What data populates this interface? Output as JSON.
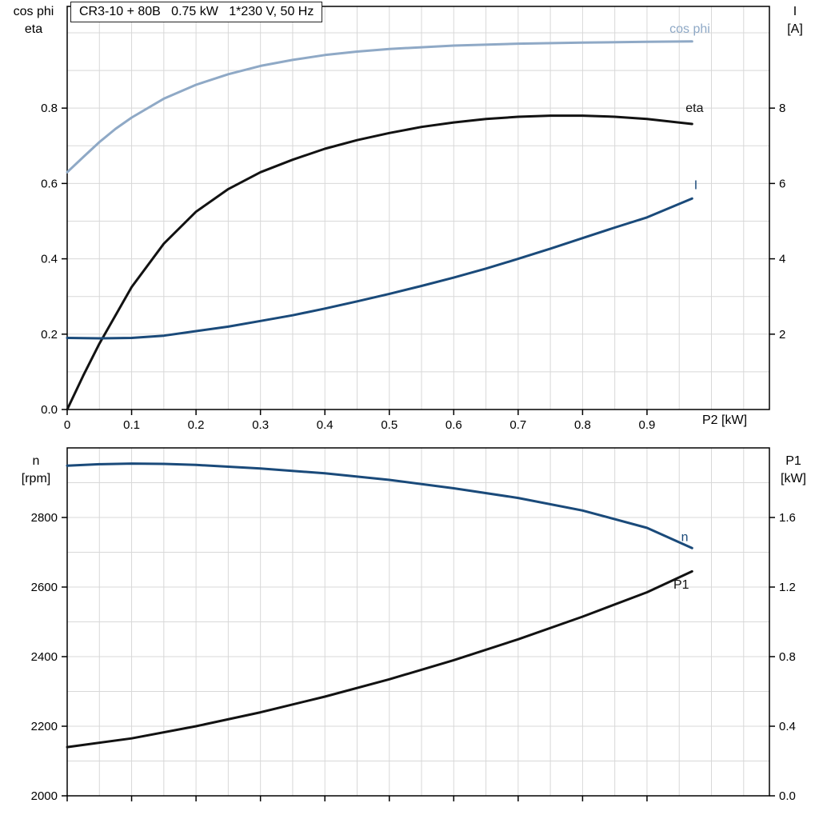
{
  "title_box": {
    "text": "CR3-10 + 80B   0.75 kW   1*230 V, 50 Hz"
  },
  "colors": {
    "cos_phi": "#8fa9c6",
    "eta": "#121212",
    "current": "#1a4a7a",
    "speed": "#1a4a7a",
    "p1": "#121212",
    "grid": "#d8d8d8",
    "axis": "#000000",
    "text": "#000000"
  },
  "chart_data": [
    {
      "type": "line",
      "title": "CR3-10 + 80B   0.75 kW   1*230 V, 50 Hz",
      "xlabel": "P2 [kW]",
      "x_axis": {
        "range": [
          0,
          1.09
        ],
        "minor_grid_step": 0.05,
        "ticks": [
          0,
          0.1,
          0.2,
          0.3,
          0.4,
          0.5,
          0.6,
          0.7,
          0.8,
          0.9
        ],
        "labels": [
          "0",
          "0.1",
          "0.2",
          "0.3",
          "0.4",
          "0.5",
          "0.6",
          "0.7",
          "0.8",
          "0.9"
        ]
      },
      "left_axis": {
        "label_lines": [
          "cos phi",
          "eta"
        ],
        "range": [
          0,
          1.07
        ],
        "grid_step": 0.1,
        "ticks": [
          0,
          0.2,
          0.4,
          0.6,
          0.8
        ],
        "labels": [
          "0.0",
          "0.2",
          "0.4",
          "0.6",
          "0.8"
        ]
      },
      "right_axis": {
        "label_lines": [
          "I",
          "[A]"
        ],
        "range": [
          0,
          10.7
        ],
        "ticks": [
          2,
          4,
          6,
          8
        ],
        "labels": [
          "2",
          "4",
          "6",
          "8"
        ]
      },
      "series": [
        {
          "id": "cos-phi",
          "name": "cos phi",
          "label": "cos phi",
          "axis": "left",
          "color_key": "cos_phi",
          "label_at": [
            0.935,
            1.0
          ],
          "x": [
            0,
            0.025,
            0.05,
            0.075,
            0.1,
            0.15,
            0.2,
            0.25,
            0.3,
            0.35,
            0.4,
            0.45,
            0.5,
            0.6,
            0.7,
            0.8,
            0.9,
            0.97
          ],
          "y": [
            0.63,
            0.67,
            0.71,
            0.745,
            0.775,
            0.825,
            0.862,
            0.89,
            0.912,
            0.928,
            0.941,
            0.95,
            0.957,
            0.966,
            0.971,
            0.974,
            0.976,
            0.977
          ]
        },
        {
          "id": "eta",
          "name": "eta",
          "label": "eta",
          "axis": "left",
          "color_key": "eta",
          "label_at": [
            0.96,
            0.79
          ],
          "x": [
            0,
            0.025,
            0.05,
            0.1,
            0.15,
            0.2,
            0.25,
            0.3,
            0.35,
            0.4,
            0.45,
            0.5,
            0.55,
            0.6,
            0.65,
            0.7,
            0.75,
            0.8,
            0.85,
            0.9,
            0.97
          ],
          "y": [
            0,
            0.09,
            0.175,
            0.325,
            0.44,
            0.525,
            0.585,
            0.63,
            0.663,
            0.692,
            0.715,
            0.734,
            0.75,
            0.762,
            0.771,
            0.777,
            0.78,
            0.78,
            0.777,
            0.771,
            0.758
          ]
        },
        {
          "id": "current",
          "name": "I",
          "label": "I",
          "axis": "right",
          "color_key": "current",
          "label_at": [
            0.973,
            5.85
          ],
          "x": [
            0,
            0.05,
            0.1,
            0.15,
            0.2,
            0.25,
            0.3,
            0.35,
            0.4,
            0.45,
            0.5,
            0.55,
            0.6,
            0.65,
            0.7,
            0.75,
            0.8,
            0.85,
            0.9,
            0.97
          ],
          "y": [
            1.9,
            1.89,
            1.9,
            1.96,
            2.08,
            2.2,
            2.35,
            2.5,
            2.68,
            2.87,
            3.07,
            3.28,
            3.5,
            3.74,
            4.0,
            4.27,
            4.55,
            4.83,
            5.1,
            5.6
          ]
        }
      ]
    },
    {
      "type": "line",
      "title": "",
      "xlabel": "",
      "x_axis": {
        "range": [
          0,
          1.09
        ],
        "minor_grid_step": 0.05,
        "ticks": [
          0,
          0.1,
          0.2,
          0.3,
          0.4,
          0.5,
          0.6,
          0.7,
          0.8,
          0.9
        ],
        "labels": []
      },
      "left_axis": {
        "label_lines": [
          "n",
          "[rpm]"
        ],
        "range": [
          2000,
          3000
        ],
        "grid_step": 100,
        "ticks": [
          2000,
          2200,
          2400,
          2600,
          2800
        ],
        "labels": [
          "2000",
          "2200",
          "2400",
          "2600",
          "2800"
        ]
      },
      "right_axis": {
        "label_lines": [
          "P1",
          "[kW]"
        ],
        "range": [
          0,
          2.0
        ],
        "ticks": [
          0,
          0.4,
          0.8,
          1.2,
          1.6
        ],
        "labels": [
          "0.0",
          "0.4",
          "0.8",
          "1.2",
          "1.6"
        ]
      },
      "series": [
        {
          "id": "speed",
          "name": "n",
          "label": "n",
          "axis": "left",
          "color_key": "speed",
          "label_at": [
            0.953,
            2732
          ],
          "x": [
            0,
            0.05,
            0.1,
            0.15,
            0.2,
            0.3,
            0.4,
            0.5,
            0.6,
            0.7,
            0.8,
            0.9,
            0.97
          ],
          "y": [
            2949,
            2953,
            2955,
            2954,
            2951,
            2941,
            2927,
            2908,
            2884,
            2856,
            2820,
            2770,
            2712
          ]
        },
        {
          "id": "p1",
          "name": "P1",
          "label": "P1",
          "axis": "right",
          "color_key": "p1",
          "label_at": [
            0.941,
            1.19
          ],
          "x": [
            0,
            0.1,
            0.2,
            0.3,
            0.4,
            0.5,
            0.6,
            0.7,
            0.8,
            0.9,
            0.97
          ],
          "y": [
            0.28,
            0.33,
            0.4,
            0.48,
            0.57,
            0.67,
            0.78,
            0.9,
            1.03,
            1.17,
            1.29
          ]
        }
      ]
    }
  ]
}
